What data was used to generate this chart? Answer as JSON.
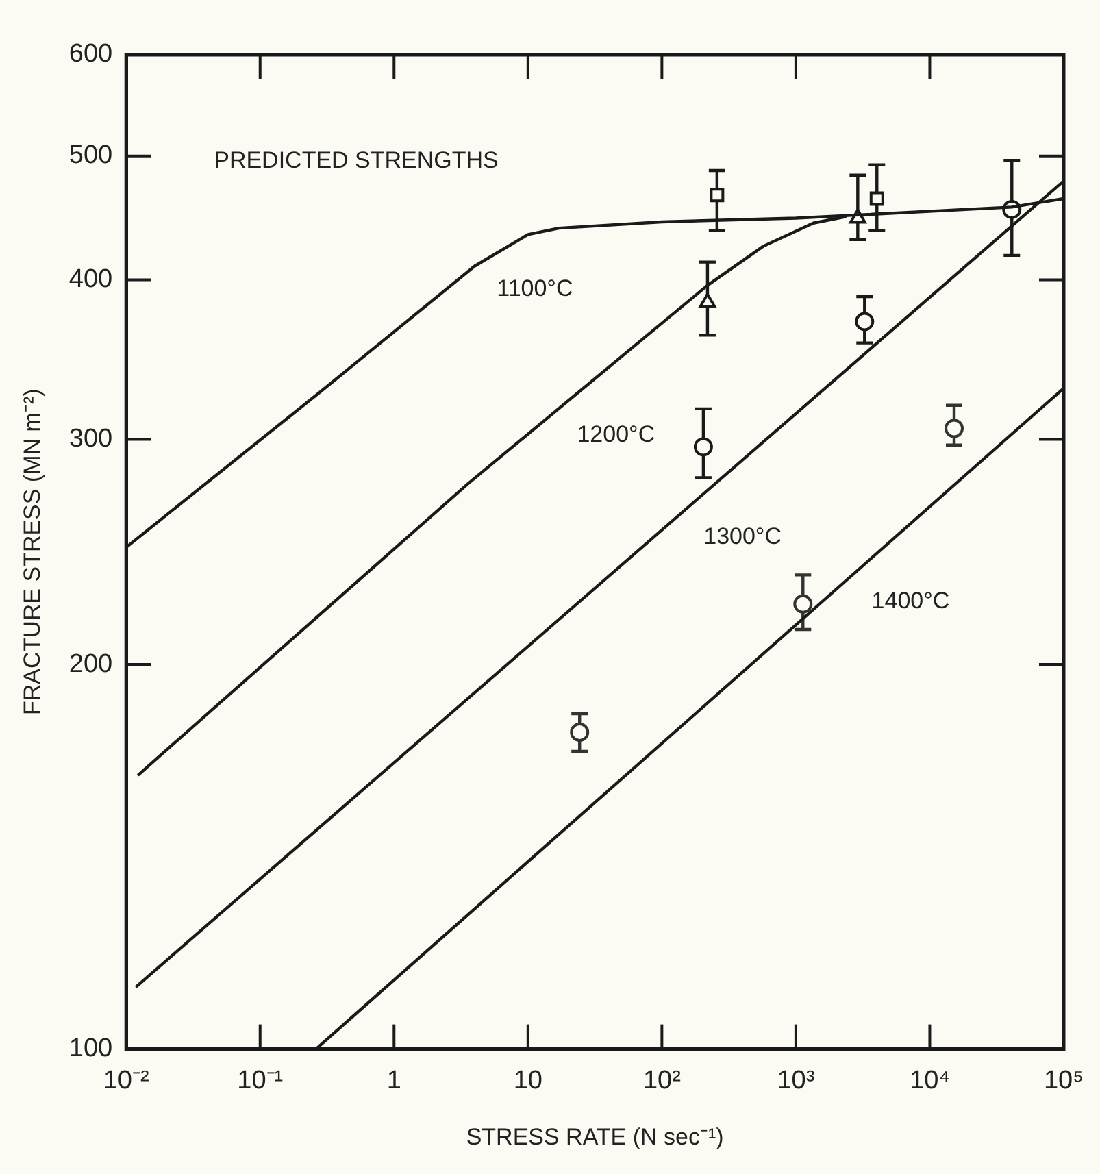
{
  "chart_data": {
    "type": "scatter",
    "xlabel": "STRESS RATE (N sec⁻¹)",
    "ylabel": "FRACTURE STRESS (MN m⁻²)",
    "log": "xy",
    "xlim": [
      0.01,
      100000
    ],
    "ylim": [
      100,
      600
    ],
    "xticks": [
      {
        "value": 0.01,
        "label": "10⁻²"
      },
      {
        "value": 0.1,
        "label": "10⁻¹"
      },
      1,
      10,
      {
        "value": 100,
        "label": "10²"
      },
      {
        "value": 1000,
        "label": "10³"
      },
      {
        "value": 10000,
        "label": "10⁴"
      },
      {
        "value": 100000,
        "label": "10⁵"
      }
    ],
    "yticks": [
      100,
      200,
      300,
      400,
      500,
      600
    ],
    "series": [
      {
        "type": "line",
        "color": "#1a1a1a",
        "x": [
          0.01,
          0.283,
          4,
          10,
          17,
          100,
          1000,
          41000,
          100000
        ],
        "values": [
          247,
          327,
          410,
          434,
          439,
          444,
          447,
          456,
          463
        ]
      },
      {
        "type": "line",
        "color": "#1a1a1a",
        "x": [
          0.0124,
          3.57,
          219,
          573,
          1350,
          2330
        ],
        "values": [
          164,
          277,
          396,
          425,
          443,
          448
        ]
      },
      {
        "type": "line",
        "color": "#1a1a1a",
        "x": [
          0.012,
          100000
        ],
        "values": [
          112,
          478
        ]
      },
      {
        "type": "line",
        "color": "#1a1a1a",
        "x": [
          0.261,
          100000
        ],
        "values": [
          100,
          329
        ]
      },
      {
        "marker": "square",
        "color": "#1a1a1a",
        "x": [
          258,
          4030
        ],
        "values": [
          466,
          463
        ],
        "errors": [
          [
            437,
            487
          ],
          [
            437,
            492
          ]
        ]
      },
      {
        "marker": "triangle",
        "color": "#1a1a1a",
        "x": [
          219,
          2900
        ],
        "values": [
          384,
          447
        ],
        "errors": [
          [
            362,
            413
          ],
          [
            430,
            483
          ]
        ]
      },
      {
        "marker": "circle",
        "color": "#1a1a1a",
        "x": [
          204,
          3260,
          41000
        ],
        "values": [
          296,
          371,
          454
        ],
        "errors": [
          [
            280,
            317
          ],
          [
            357,
            388
          ],
          [
            418,
            496
          ]
        ]
      },
      {
        "marker": "circle",
        "color": "#333333",
        "x": [
          24.3,
          1130,
          15200
        ],
        "values": [
          177,
          223,
          306
        ],
        "errors": [
          [
            171,
            183
          ],
          [
            213,
            235
          ],
          [
            297,
            319
          ]
        ]
      }
    ],
    "annotations": [
      "PREDICTED STRENGTHS",
      {
        "text": "1100°C",
        "x": 3.17,
        "y": 402
      },
      {
        "text": "1200°C",
        "x": 12.6,
        "y": 309
      },
      {
        "text": "1300°C",
        "x": 111,
        "y": 257
      },
      {
        "text": "1400°C",
        "x": 1995,
        "y": 229
      }
    ]
  }
}
